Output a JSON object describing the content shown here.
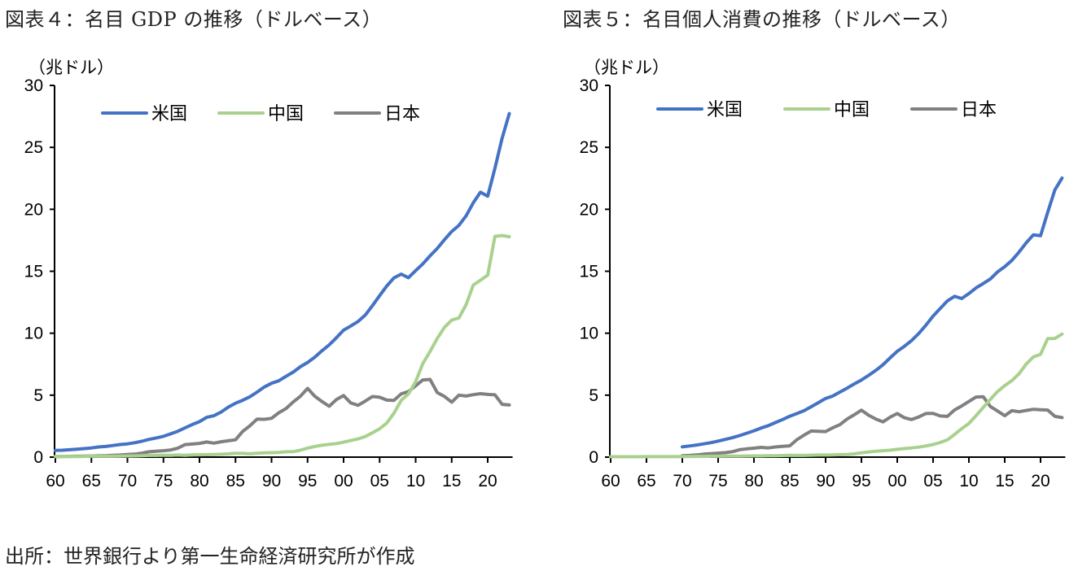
{
  "titles": {
    "chart1": "図表４：名目 GDP の推移（ドルベース）",
    "chart2": "図表５：名目個人消費の推移（ドルベース）"
  },
  "source": "出所：世界銀行より第一生命経済研究所が作成",
  "colors": {
    "米国": "#4472C4",
    "中国": "#A9D18E",
    "日本": "#808080",
    "axis": "#000000"
  },
  "chart_data": [
    {
      "type": "line",
      "title": "図表４：名目 GDP の推移（ドルベース）",
      "ylabel": "（兆ドル）",
      "xlabel": "",
      "ylim": [
        0,
        30
      ],
      "xlim": [
        1960,
        2023
      ],
      "yticks": [
        "0",
        "5",
        "10",
        "15",
        "20",
        "25",
        "30"
      ],
      "ytick_values": [
        0,
        5,
        10,
        15,
        20,
        25,
        30
      ],
      "xticks": [
        "60",
        "65",
        "70",
        "75",
        "80",
        "85",
        "90",
        "95",
        "00",
        "05",
        "10",
        "15",
        "20"
      ],
      "xtick_values": [
        1960,
        1965,
        1970,
        1975,
        1980,
        1985,
        1990,
        1995,
        2000,
        2005,
        2010,
        2015,
        2020
      ],
      "legend": {
        "position": "top",
        "entries": [
          "米国",
          "中国",
          "日本"
        ]
      },
      "grid": false,
      "series": [
        {
          "name": "米国",
          "x_start": 1960,
          "values": [
            0.54,
            0.56,
            0.6,
            0.64,
            0.69,
            0.74,
            0.82,
            0.86,
            0.94,
            1.02,
            1.07,
            1.16,
            1.28,
            1.43,
            1.55,
            1.68,
            1.88,
            2.09,
            2.36,
            2.63,
            2.86,
            3.21,
            3.34,
            3.64,
            4.04,
            4.35,
            4.59,
            4.87,
            5.25,
            5.66,
            5.96,
            6.16,
            6.52,
            6.86,
            7.29,
            7.64,
            8.07,
            8.58,
            9.06,
            9.63,
            10.25,
            10.58,
            10.94,
            11.46,
            12.22,
            13.04,
            13.82,
            14.47,
            14.77,
            14.48,
            15.05,
            15.6,
            16.25,
            16.84,
            17.55,
            18.21,
            18.7,
            19.48,
            20.53,
            21.38,
            21.06,
            23.32,
            25.74,
            27.72
          ]
        },
        {
          "name": "中国",
          "x_start": 1960,
          "values": [
            0.06,
            0.05,
            0.05,
            0.05,
            0.06,
            0.07,
            0.08,
            0.07,
            0.07,
            0.08,
            0.09,
            0.1,
            0.11,
            0.14,
            0.14,
            0.16,
            0.15,
            0.17,
            0.15,
            0.18,
            0.19,
            0.2,
            0.21,
            0.23,
            0.26,
            0.31,
            0.3,
            0.27,
            0.31,
            0.35,
            0.36,
            0.38,
            0.43,
            0.44,
            0.56,
            0.73,
            0.86,
            0.96,
            1.03,
            1.09,
            1.21,
            1.34,
            1.47,
            1.66,
            1.96,
            2.29,
            2.75,
            3.55,
            4.59,
            5.1,
            6.09,
            7.55,
            8.53,
            9.57,
            10.48,
            11.06,
            11.23,
            12.31,
            13.89,
            14.28,
            14.69,
            17.82,
            17.88,
            17.79
          ]
        },
        {
          "name": "日本",
          "x_start": 1960,
          "values": [
            0.04,
            0.05,
            0.06,
            0.07,
            0.08,
            0.09,
            0.11,
            0.12,
            0.15,
            0.17,
            0.21,
            0.24,
            0.32,
            0.43,
            0.48,
            0.52,
            0.58,
            0.72,
            1.01,
            1.06,
            1.11,
            1.22,
            1.13,
            1.24,
            1.32,
            1.4,
            2.08,
            2.53,
            3.07,
            3.05,
            3.13,
            3.58,
            3.91,
            4.45,
            4.91,
            5.55,
            4.92,
            4.49,
            4.1,
            4.64,
            4.97,
            4.37,
            4.18,
            4.52,
            4.89,
            4.83,
            4.6,
            4.58,
            5.11,
            5.29,
            5.76,
            6.23,
            6.27,
            5.21,
            4.9,
            4.44,
            5.0,
            4.93,
            5.04,
            5.12,
            5.06,
            5.03,
            4.26,
            4.21
          ]
        }
      ]
    },
    {
      "type": "line",
      "title": "図表５：名目個人消費の推移（ドルベース）",
      "ylabel": "（兆ドル）",
      "xlabel": "",
      "ylim": [
        0,
        30
      ],
      "xlim": [
        1960,
        2023
      ],
      "yticks": [
        "0",
        "5",
        "10",
        "15",
        "20",
        "25",
        "30"
      ],
      "ytick_values": [
        0,
        5,
        10,
        15,
        20,
        25,
        30
      ],
      "xticks": [
        "60",
        "65",
        "70",
        "75",
        "80",
        "85",
        "90",
        "95",
        "00",
        "05",
        "10",
        "15",
        "20"
      ],
      "xtick_values": [
        1960,
        1965,
        1970,
        1975,
        1980,
        1985,
        1990,
        1995,
        2000,
        2005,
        2010,
        2015,
        2020
      ],
      "legend": {
        "position": "top",
        "entries": [
          "米国",
          "中国",
          "日本"
        ]
      },
      "grid": false,
      "series": [
        {
          "name": "米国",
          "x_start": 1970,
          "values": [
            0.83,
            0.9,
            0.98,
            1.07,
            1.17,
            1.29,
            1.43,
            1.57,
            1.74,
            1.93,
            2.13,
            2.35,
            2.54,
            2.79,
            3.03,
            3.3,
            3.52,
            3.75,
            4.07,
            4.4,
            4.73,
            4.93,
            5.25,
            5.57,
            5.91,
            6.22,
            6.6,
            7.0,
            7.45,
            8.01,
            8.54,
            8.95,
            9.41,
            9.98,
            10.65,
            11.38,
            12.0,
            12.61,
            12.98,
            12.8,
            13.2,
            13.66,
            14.01,
            14.38,
            14.95,
            15.37,
            15.88,
            16.55,
            17.3,
            17.94,
            17.87,
            19.76,
            21.57,
            22.52
          ]
        },
        {
          "name": "中国",
          "x_start": 1960,
          "values": [
            0.03,
            0.03,
            0.03,
            0.03,
            0.03,
            0.04,
            0.04,
            0.04,
            0.04,
            0.04,
            0.05,
            0.05,
            0.06,
            0.06,
            0.07,
            0.07,
            0.08,
            0.08,
            0.08,
            0.09,
            0.1,
            0.1,
            0.11,
            0.12,
            0.13,
            0.15,
            0.14,
            0.14,
            0.16,
            0.17,
            0.17,
            0.18,
            0.2,
            0.21,
            0.26,
            0.35,
            0.42,
            0.47,
            0.52,
            0.56,
            0.63,
            0.69,
            0.74,
            0.81,
            0.9,
            1.02,
            1.18,
            1.39,
            1.83,
            2.3,
            2.72,
            3.35,
            4.01,
            4.67,
            5.29,
            5.77,
            6.18,
            6.73,
            7.51,
            8.09,
            8.3,
            9.57,
            9.58,
            9.93
          ]
        },
        {
          "name": "日本",
          "x_start": 1970,
          "values": [
            0.12,
            0.14,
            0.18,
            0.24,
            0.28,
            0.32,
            0.36,
            0.44,
            0.6,
            0.67,
            0.72,
            0.79,
            0.74,
            0.82,
            0.87,
            0.91,
            1.41,
            1.78,
            2.11,
            2.08,
            2.06,
            2.37,
            2.62,
            3.07,
            3.42,
            3.79,
            3.38,
            3.08,
            2.84,
            3.22,
            3.52,
            3.18,
            3.03,
            3.24,
            3.52,
            3.53,
            3.32,
            3.29,
            3.81,
            4.13,
            4.49,
            4.85,
            4.88,
            4.08,
            3.72,
            3.34,
            3.75,
            3.66,
            3.77,
            3.86,
            3.83,
            3.8,
            3.29,
            3.19
          ]
        }
      ]
    }
  ]
}
